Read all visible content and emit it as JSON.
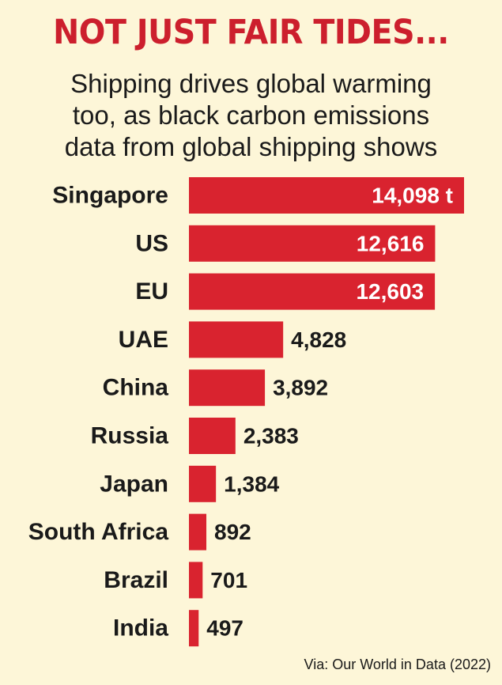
{
  "chart_data": {
    "type": "bar",
    "orientation": "horizontal",
    "title": "NOT JUST FAIR TIDES...",
    "subtitle_lines": [
      "Shipping drives global warming",
      "too, as black carbon emissions",
      "data from global shipping shows"
    ],
    "categories": [
      "Singapore",
      "US",
      "EU",
      "UAE",
      "China",
      "Russia",
      "Japan",
      "South Africa",
      "Brazil",
      "India"
    ],
    "values": [
      14098,
      12616,
      12603,
      4828,
      3892,
      2383,
      1384,
      892,
      701,
      497
    ],
    "value_labels": [
      "14,098 t",
      "12,616",
      "12,603",
      "4,828",
      "3,892",
      "2,383",
      "1,384",
      "892",
      "701",
      "497"
    ],
    "xlim": [
      0,
      14098
    ],
    "grid": false,
    "legend": "none",
    "source": "Via: Our World in Data (2022)"
  },
  "colors": {
    "bar": "#d9232f",
    "title": "#cc1f2d",
    "background": "#fdf6d8",
    "text": "#1a1a1a",
    "label_on_bar": "#ffffff"
  }
}
